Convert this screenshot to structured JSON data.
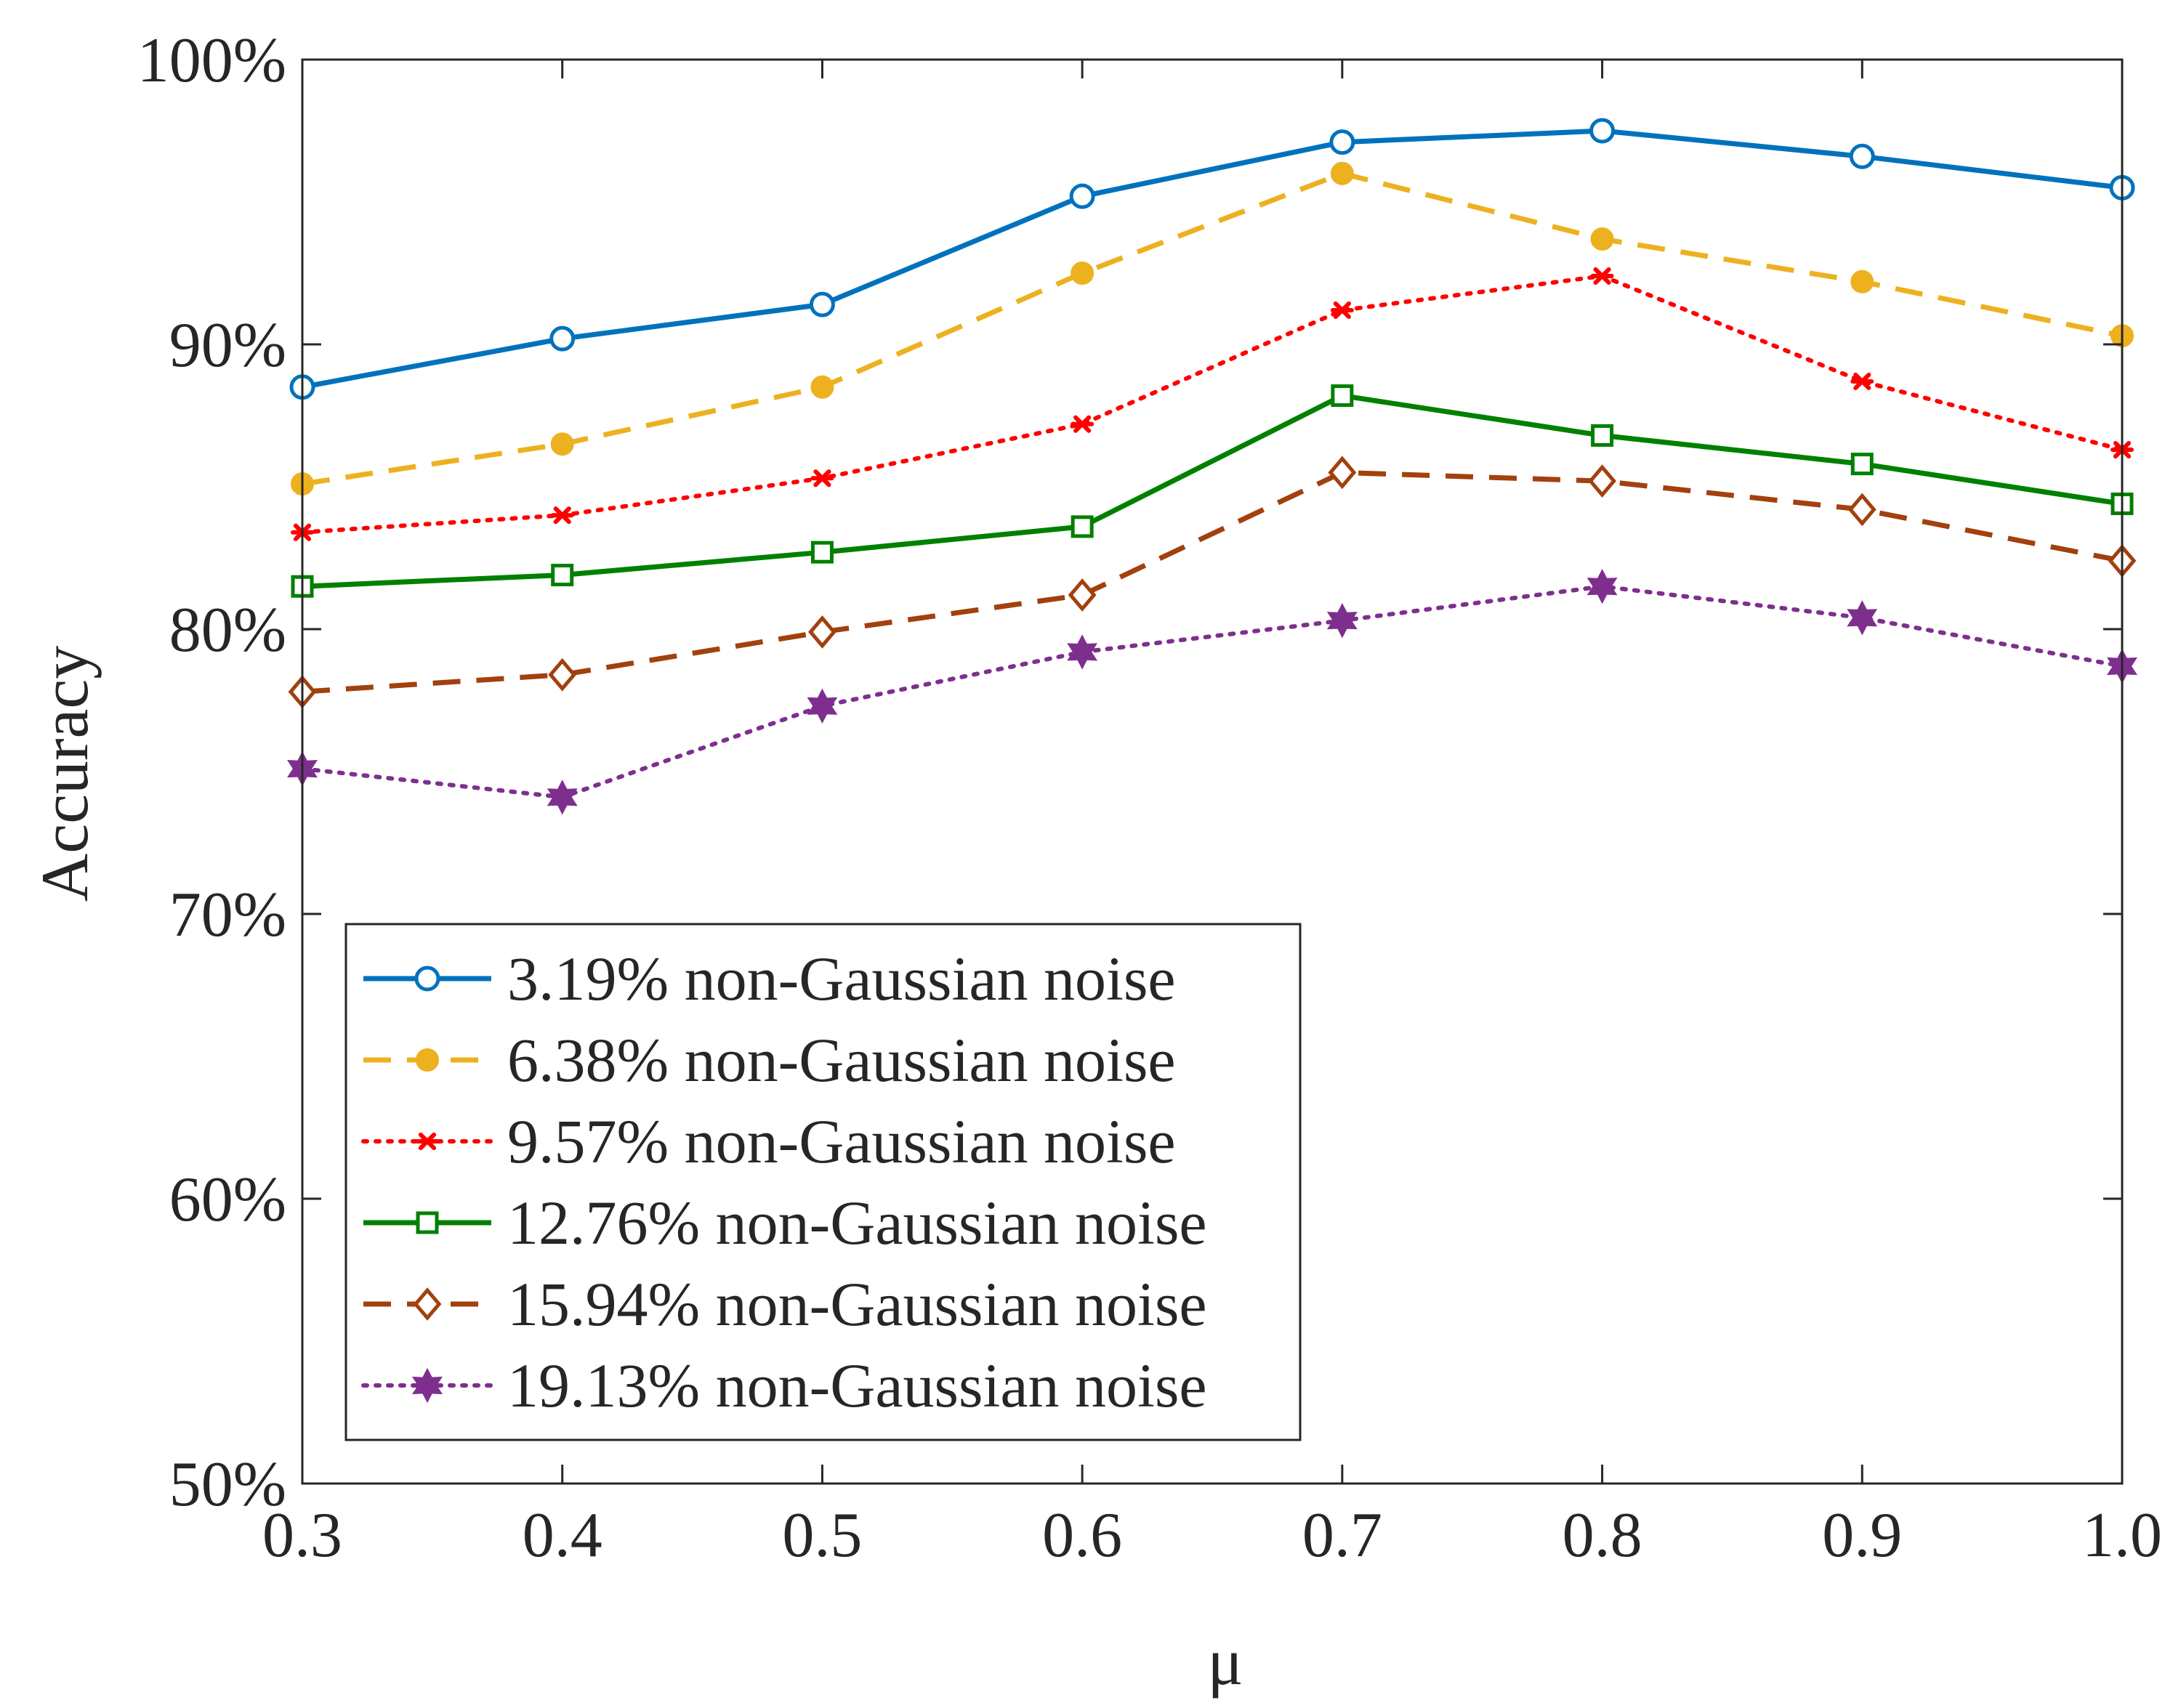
{
  "chart_data": {
    "type": "line",
    "title": "",
    "xlabel": "μ",
    "ylabel": "Accuracy",
    "x": [
      0.3,
      0.4,
      0.5,
      0.6,
      0.7,
      0.8,
      0.9,
      1.0
    ],
    "x_tick_labels": [
      "0.3",
      "0.4",
      "0.5",
      "0.6",
      "0.7",
      "0.8",
      "0.9",
      "1.0"
    ],
    "xlim": [
      0.3,
      1.0
    ],
    "ylim": [
      50,
      100
    ],
    "y_ticks": [
      50,
      60,
      70,
      80,
      90,
      100
    ],
    "y_tick_labels": [
      "50%",
      "60%",
      "70%",
      "80%",
      "90%",
      "100%"
    ],
    "grid": false,
    "legend_position": "bottom-left",
    "series": [
      {
        "name": "3.19% non-Gaussian noise",
        "color": "#0072BD",
        "line_style": "solid",
        "marker": "circle",
        "values": [
          88.5,
          90.2,
          91.4,
          95.2,
          97.1,
          97.5,
          96.6,
          95.5
        ]
      },
      {
        "name": "6.38% non-Gaussian noise",
        "color": "#EDB120",
        "line_style": "dashed",
        "marker": "point",
        "values": [
          85.1,
          86.5,
          88.5,
          92.5,
          96.0,
          93.7,
          92.2,
          90.3
        ]
      },
      {
        "name": "9.57% non-Gaussian noise",
        "color": "#FF0000",
        "line_style": "dotted",
        "marker": "asterisk",
        "values": [
          83.4,
          84.0,
          85.3,
          87.2,
          91.2,
          92.4,
          88.7,
          86.3
        ]
      },
      {
        "name": "12.76% non-Gaussian noise",
        "color": "#008000",
        "line_style": "solid",
        "marker": "square",
        "values": [
          81.5,
          81.9,
          82.7,
          83.6,
          88.2,
          86.8,
          85.8,
          84.4
        ]
      },
      {
        "name": "15.94% non-Gaussian noise",
        "color": "#A2400E",
        "line_style": "dashed",
        "marker": "diamond",
        "values": [
          77.8,
          78.4,
          79.9,
          81.2,
          85.5,
          85.2,
          84.2,
          82.4
        ]
      },
      {
        "name": "19.13% non-Gaussian noise",
        "color": "#7E2F8E",
        "line_style": "dotted",
        "marker": "hexagram",
        "values": [
          75.1,
          74.1,
          77.3,
          79.2,
          80.3,
          81.5,
          80.4,
          78.7
        ]
      }
    ]
  }
}
